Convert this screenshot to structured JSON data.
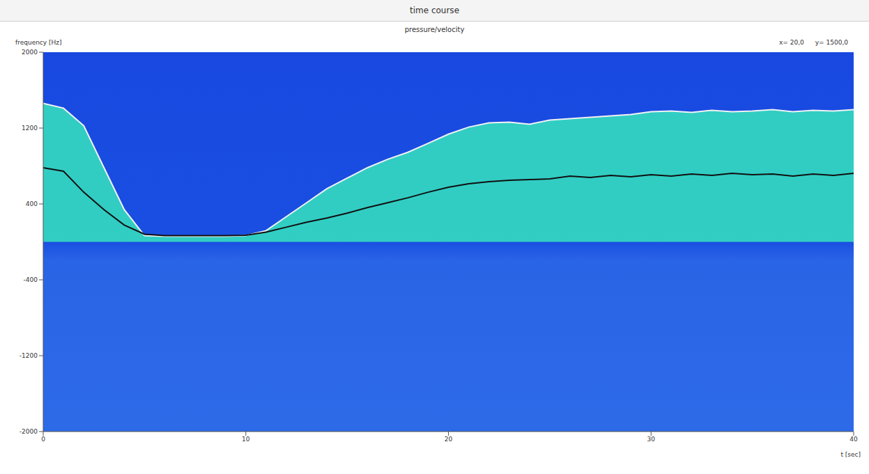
{
  "chart_data": {
    "type": "line",
    "title": "time course",
    "subtitle": "pressure/velocity",
    "y_label": "frequency [Hz]",
    "x_label": "t [sec]",
    "annotations": [
      "x= 20,0",
      "y= 1500,0"
    ],
    "x": [
      0,
      1,
      2,
      3,
      4,
      5,
      6,
      7,
      8,
      9,
      10,
      11,
      12,
      13,
      14,
      15,
      16,
      17,
      18,
      19,
      20,
      21,
      22,
      23,
      24,
      25,
      26,
      27,
      28,
      29,
      30,
      31,
      32,
      33,
      34,
      35,
      36,
      37,
      38,
      39,
      40
    ],
    "series": [
      {
        "color": "#f2f2f2",
        "values": [
          1461,
          1410,
          1225,
          782,
          340,
          66,
          59,
          59,
          59,
          59,
          66,
          118,
          266,
          413,
          561,
          672,
          782,
          871,
          945,
          1040,
          1136,
          1210,
          1255,
          1262,
          1240,
          1284,
          1299,
          1314,
          1329,
          1343,
          1373,
          1380,
          1366,
          1388,
          1373,
          1380,
          1395,
          1373,
          1388,
          1380,
          1395
        ]
      },
      {
        "color": "#101010",
        "values": [
          782,
          745,
          524,
          340,
          177,
          81,
          66,
          66,
          66,
          66,
          70,
          103,
          155,
          207,
          251,
          303,
          362,
          413,
          465,
          524,
          576,
          613,
          635,
          649,
          657,
          664,
          694,
          679,
          701,
          686,
          708,
          694,
          716,
          701,
          723,
          708,
          716,
          694,
          716,
          701,
          723
        ]
      }
    ],
    "xlim": [
      0,
      40
    ],
    "ylim": [
      -2000,
      2000
    ],
    "xticks": [
      0,
      10,
      20,
      30,
      40
    ],
    "yticks": [
      2000,
      1200,
      400,
      -400,
      -1200,
      -2000
    ],
    "grid": false
  }
}
